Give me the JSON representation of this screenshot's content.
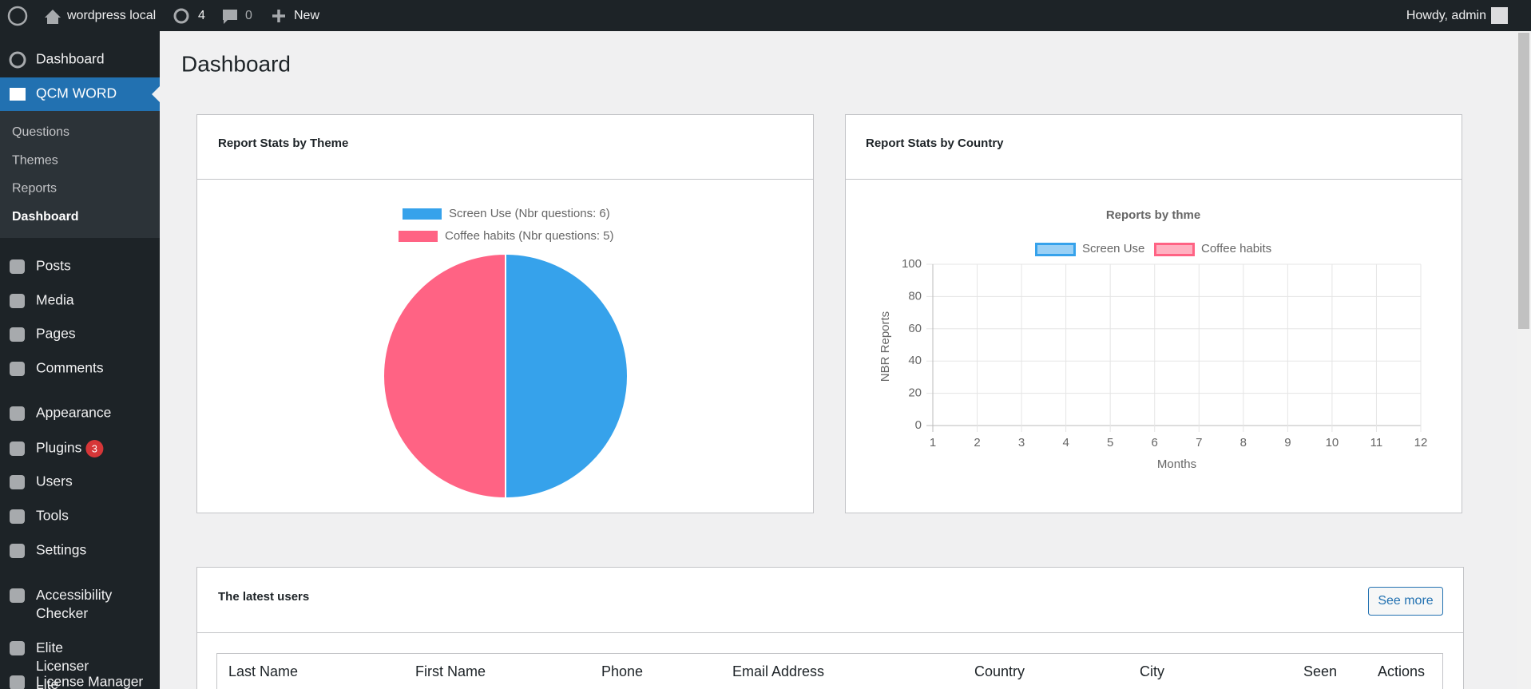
{
  "admin_bar": {
    "site": "wordpress local",
    "updates": "4",
    "comments": "0",
    "new": "New",
    "greeting": "Howdy, admin"
  },
  "sidebar": {
    "top": "Dashboard",
    "active": "QCM WORD",
    "submenu": [
      "Questions",
      "Themes",
      "Reports",
      "Dashboard"
    ],
    "menu": [
      "Posts",
      "Media",
      "Pages",
      "Comments",
      "Appearance",
      "Plugins",
      "Users",
      "Tools",
      "Settings",
      "Accessibility Checker",
      "Elite Licenser Lite",
      "License Manager"
    ],
    "plugins_badge": "3"
  },
  "page_title": "Dashboard",
  "cards": [
    "Report Stats by Theme",
    "Report Stats by Country"
  ],
  "chart_data": [
    {
      "type": "pie",
      "categories": [
        "Screen Use (Nbr questions: 6)",
        "Coffee habits (Nbr questions: 5)"
      ],
      "values": [
        50,
        50
      ],
      "colors": [
        "#36a2eb",
        "#ff6384"
      ],
      "legend": "top"
    },
    {
      "type": "line",
      "title": "Reports by thme",
      "x": [
        1,
        2,
        3,
        4,
        5,
        6,
        7,
        8,
        9,
        10,
        11,
        12
      ],
      "series": [
        {
          "name": "Screen Use",
          "color": "#36a2eb",
          "values": [
            null,
            null,
            null,
            null,
            null,
            null,
            null,
            null,
            null,
            null,
            null,
            null
          ]
        },
        {
          "name": "Coffee habits",
          "color": "#ff6384",
          "values": [
            null,
            null,
            null,
            null,
            null,
            null,
            null,
            null,
            null,
            null,
            null,
            null
          ]
        }
      ],
      "xlim": [
        1,
        12
      ],
      "xticks": [
        1,
        2,
        3,
        4,
        5,
        6,
        7,
        8,
        9,
        10,
        11,
        12
      ],
      "ylim": [
        0,
        100
      ],
      "yticks": [
        0,
        20,
        40,
        60,
        80,
        100
      ],
      "xlabel": "Months",
      "ylabel": "NBR Reports",
      "grid": true,
      "legend": "top"
    }
  ],
  "table": {
    "title": "The latest users",
    "button": "See more",
    "columns": [
      "Last Name",
      "First Name",
      "Phone",
      "Email Address",
      "Country",
      "City",
      "Seen",
      "Actions"
    ]
  }
}
